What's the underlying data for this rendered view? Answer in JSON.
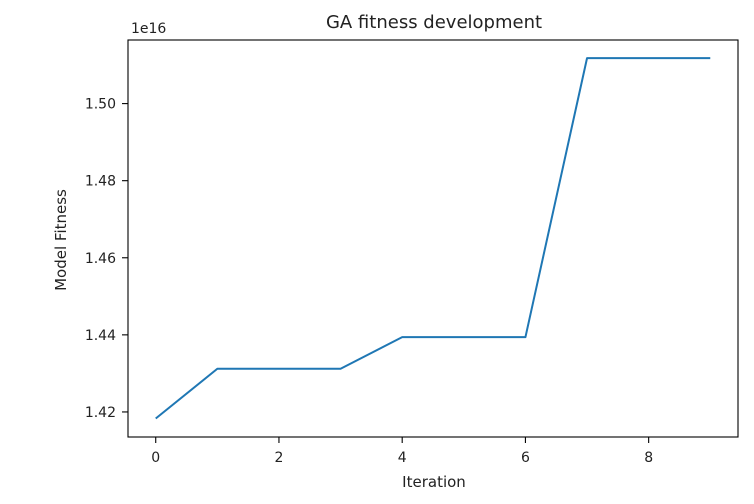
{
  "chart_data": {
    "type": "line",
    "title": "GA fitness development",
    "xlabel": "Iteration",
    "ylabel": "Model Fitness",
    "y_offset_label": "1e16",
    "xlim": [
      -0.45,
      9.45
    ],
    "ylim": [
      1.4135,
      1.5165
    ],
    "x_ticks": [
      0,
      2,
      4,
      6,
      8
    ],
    "x_tick_labels": [
      "0",
      "2",
      "4",
      "6",
      "8"
    ],
    "y_ticks": [
      1.42,
      1.44,
      1.46,
      1.48,
      1.5
    ],
    "y_tick_labels": [
      "1.42",
      "1.44",
      "1.46",
      "1.48",
      "1.50"
    ],
    "grid": false,
    "series": [
      {
        "color": "#1f77b4",
        "x": [
          0,
          1,
          2,
          3,
          4,
          5,
          6,
          7,
          8,
          9
        ],
        "y": [
          1.4183,
          1.4312,
          1.4312,
          1.4312,
          1.4394,
          1.4394,
          1.4394,
          1.5118,
          1.5118,
          1.5118
        ]
      }
    ]
  }
}
